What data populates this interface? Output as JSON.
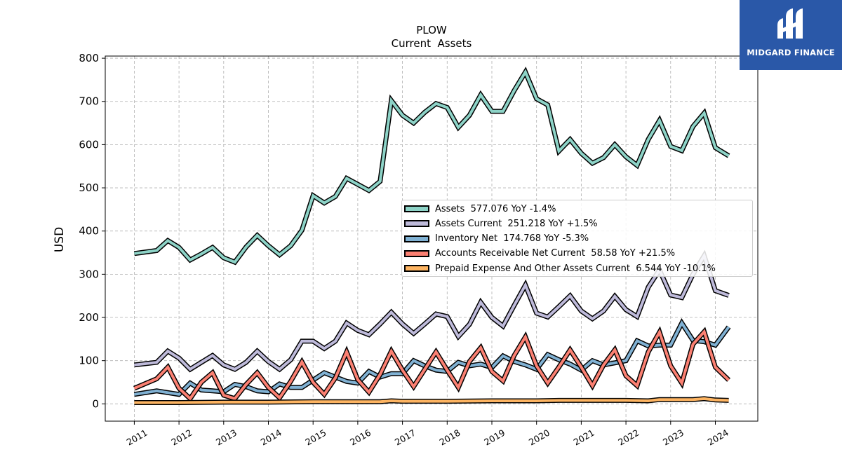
{
  "brand": {
    "name": "MIDGARD FINANCE",
    "logo_color": "#2a58a8"
  },
  "chart_data": {
    "type": "line",
    "title": "PLOW",
    "subtitle": "Current  Assets",
    "ylabel": "USD",
    "xlabel": "",
    "ylim": [
      -40,
      805
    ],
    "xlim": [
      2010.35,
      2024.95
    ],
    "yticks": [
      0,
      100,
      200,
      300,
      400,
      500,
      600,
      700,
      800
    ],
    "xticks": [
      "2011",
      "2012",
      "2013",
      "2014",
      "2015",
      "2016",
      "2017",
      "2018",
      "2019",
      "2020",
      "2021",
      "2022",
      "2023",
      "2024"
    ],
    "grid": true,
    "legend_position": "center-right",
    "series": [
      {
        "name": "Assets",
        "legend": "Assets  577.076 YoY -1.4%",
        "color": "#8dd3c7",
        "x": [
          2011.0,
          2011.5,
          2011.75,
          2012.0,
          2012.25,
          2012.5,
          2012.75,
          2013.0,
          2013.25,
          2013.5,
          2013.75,
          2014.0,
          2014.25,
          2014.5,
          2014.75,
          2015.0,
          2015.25,
          2015.5,
          2015.75,
          2016.0,
          2016.25,
          2016.5,
          2016.75,
          2017.0,
          2017.25,
          2017.5,
          2017.75,
          2018.0,
          2018.25,
          2018.5,
          2018.75,
          2019.0,
          2019.25,
          2019.5,
          2019.75,
          2020.0,
          2020.25,
          2020.5,
          2020.75,
          2021.0,
          2021.25,
          2021.5,
          2021.75,
          2022.0,
          2022.25,
          2022.5,
          2022.75,
          2023.0,
          2023.25,
          2023.5,
          2023.75,
          2024.0,
          2024.3
        ],
        "values": [
          348,
          355,
          378,
          362,
          333,
          347,
          362,
          338,
          328,
          363,
          390,
          366,
          345,
          366,
          402,
          482,
          465,
          480,
          522,
          508,
          494,
          515,
          702,
          668,
          650,
          675,
          695,
          686,
          640,
          668,
          715,
          677,
          677,
          725,
          768,
          706,
          692,
          585,
          612,
          580,
          557,
          570,
          600,
          572,
          552,
          612,
          656,
          596,
          586,
          642,
          673,
          593,
          574
        ]
      },
      {
        "name": "Assets Current",
        "legend": "Assets Current  251.218 YoY +1.5%",
        "color": "#bebada",
        "x": [
          2011.0,
          2011.5,
          2011.75,
          2012.0,
          2012.25,
          2012.5,
          2012.75,
          2013.0,
          2013.25,
          2013.5,
          2013.75,
          2014.0,
          2014.25,
          2014.5,
          2014.75,
          2015.0,
          2015.25,
          2015.5,
          2015.75,
          2016.0,
          2016.25,
          2016.5,
          2016.75,
          2017.0,
          2017.25,
          2017.5,
          2017.75,
          2018.0,
          2018.25,
          2018.5,
          2018.75,
          2019.0,
          2019.25,
          2019.5,
          2019.75,
          2020.0,
          2020.25,
          2020.5,
          2020.75,
          2021.0,
          2021.25,
          2021.5,
          2021.75,
          2022.0,
          2022.25,
          2022.5,
          2022.75,
          2023.0,
          2023.25,
          2023.5,
          2023.75,
          2024.0,
          2024.3
        ],
        "values": [
          90,
          96,
          122,
          106,
          80,
          96,
          112,
          90,
          80,
          96,
          122,
          98,
          80,
          102,
          145,
          145,
          128,
          145,
          187,
          170,
          160,
          185,
          212,
          185,
          163,
          185,
          208,
          202,
          156,
          184,
          235,
          200,
          180,
          228,
          275,
          210,
          201,
          225,
          250,
          215,
          197,
          215,
          249,
          218,
          202,
          270,
          310,
          252,
          246,
          300,
          343,
          262,
          251
        ]
      },
      {
        "name": "Inventory Net",
        "legend": "Inventory Net  174.768 YoY -5.3%",
        "color": "#80b1d3",
        "x": [
          2011.0,
          2011.5,
          2011.75,
          2012.0,
          2012.25,
          2012.5,
          2012.75,
          2013.0,
          2013.25,
          2013.5,
          2013.75,
          2014.0,
          2014.25,
          2014.5,
          2014.75,
          2015.0,
          2015.25,
          2015.5,
          2015.75,
          2016.0,
          2016.25,
          2016.5,
          2016.75,
          2017.0,
          2017.25,
          2017.5,
          2017.75,
          2018.0,
          2018.25,
          2018.5,
          2018.75,
          2019.0,
          2019.25,
          2019.5,
          2019.75,
          2020.0,
          2020.25,
          2020.5,
          2020.75,
          2021.0,
          2021.25,
          2021.5,
          2021.75,
          2022.0,
          2022.25,
          2022.5,
          2022.75,
          2023.0,
          2023.25,
          2023.5,
          2023.75,
          2024.0,
          2024.3
        ],
        "values": [
          22,
          30,
          26,
          22,
          48,
          32,
          30,
          28,
          45,
          40,
          30,
          28,
          46,
          38,
          38,
          55,
          72,
          62,
          52,
          48,
          75,
          62,
          70,
          70,
          100,
          88,
          78,
          75,
          96,
          88,
          92,
          84,
          111,
          98,
          90,
          80,
          114,
          102,
          92,
          78,
          100,
          90,
          95,
          100,
          146,
          134,
          136,
          136,
          187,
          147,
          144,
          136,
          178
        ]
      },
      {
        "name": "Accounts Receivable Net Current",
        "legend": "Accounts Receivable Net Current  58.58 YoY +21.5%",
        "color": "#fb8072",
        "x": [
          2011.0,
          2011.5,
          2011.75,
          2012.0,
          2012.25,
          2012.5,
          2012.75,
          2013.0,
          2013.25,
          2013.5,
          2013.75,
          2014.0,
          2014.25,
          2014.5,
          2014.75,
          2015.0,
          2015.25,
          2015.5,
          2015.75,
          2016.0,
          2016.25,
          2016.5,
          2016.75,
          2017.0,
          2017.25,
          2017.5,
          2017.75,
          2018.0,
          2018.25,
          2018.5,
          2018.75,
          2019.0,
          2019.25,
          2019.5,
          2019.75,
          2020.0,
          2020.25,
          2020.5,
          2020.75,
          2021.0,
          2021.25,
          2021.5,
          2021.75,
          2022.0,
          2022.25,
          2022.5,
          2022.75,
          2023.0,
          2023.25,
          2023.5,
          2023.75,
          2024.0,
          2024.3
        ],
        "values": [
          36,
          58,
          85,
          36,
          12,
          50,
          72,
          20,
          12,
          45,
          72,
          38,
          14,
          52,
          97,
          50,
          22,
          60,
          120,
          56,
          27,
          68,
          122,
          78,
          40,
          80,
          120,
          78,
          38,
          98,
          130,
          75,
          53,
          112,
          155,
          88,
          48,
          85,
          125,
          85,
          42,
          90,
          125,
          65,
          42,
          120,
          166,
          88,
          48,
          138,
          167,
          85,
          55
        ]
      },
      {
        "name": "Prepaid Expense And Other Assets Current",
        "legend": "Prepaid Expense And Other Assets Current  6.544 YoY -10.1%",
        "color": "#fdb462",
        "x": [
          2011.0,
          2012.0,
          2013.0,
          2014.0,
          2015.0,
          2016.0,
          2016.5,
          2016.75,
          2017.0,
          2018.0,
          2019.0,
          2020.0,
          2020.5,
          2021.0,
          2022.0,
          2022.5,
          2022.75,
          2023.0,
          2023.5,
          2023.75,
          2024.0,
          2024.3
        ],
        "values": [
          3,
          3,
          4,
          4,
          5,
          5,
          5,
          7,
          6,
          6,
          7,
          7,
          8,
          8,
          8,
          7,
          10,
          10,
          10,
          12,
          9,
          8
        ]
      }
    ]
  }
}
